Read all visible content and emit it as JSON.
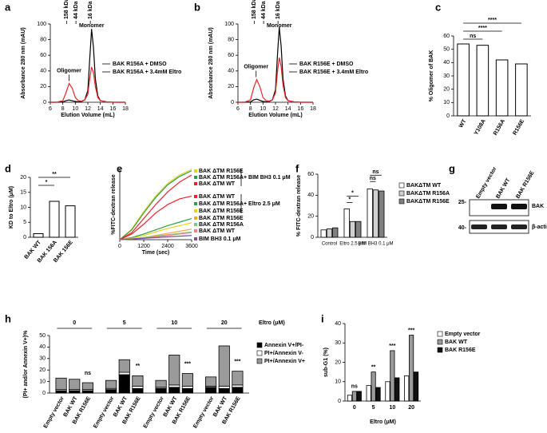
{
  "chart_data": [
    {
      "type": "line",
      "panel": "a",
      "xlabel": "Elution Volume (mL)",
      "ylabel": "Absorbance 280 nm (mAU)",
      "xlim": [
        6,
        18
      ],
      "xticks": [
        6,
        8,
        10,
        12,
        14,
        16,
        18
      ],
      "ylim": [
        0,
        100
      ],
      "yticks": [
        0,
        20,
        40,
        60,
        80,
        100
      ],
      "top_ticks": [
        {
          "value": 8.6,
          "label": "158 kDa"
        },
        {
          "value": 10.1,
          "label": "44 kDa"
        },
        {
          "value": 12.4,
          "label": "16 kDa"
        }
      ],
      "annotations": [
        "Oligomer",
        "Monomer"
      ],
      "x": [
        6,
        7,
        8,
        8.5,
        9,
        9.5,
        10,
        10.5,
        11,
        11.5,
        12,
        12.3,
        12.6,
        12.9,
        13.2,
        13.6,
        14,
        15,
        16,
        17,
        18
      ],
      "series": [
        {
          "name": "BAK R156A + DMSO",
          "color": "#000000",
          "values": [
            0,
            0,
            0.5,
            2,
            3,
            2,
            1,
            0.5,
            1,
            3,
            15,
            55,
            93,
            70,
            30,
            8,
            2,
            0.5,
            0,
            0,
            0
          ]
        },
        {
          "name": "BAK R156A + 3.4mM Eltro",
          "color": "#e8252a",
          "values": [
            0,
            0,
            2,
            12,
            24,
            18,
            6,
            2,
            1.5,
            3,
            10,
            30,
            45,
            38,
            20,
            6,
            2,
            0.5,
            0,
            0,
            0
          ]
        }
      ]
    },
    {
      "type": "line",
      "panel": "b",
      "xlabel": "Elution Volume (mL)",
      "ylabel": "Absorbance 280 nm (mAU)",
      "xlim": [
        6,
        18
      ],
      "xticks": [
        6,
        8,
        10,
        12,
        14,
        16,
        18
      ],
      "ylim": [
        0,
        100
      ],
      "yticks": [
        0,
        20,
        40,
        60,
        80,
        100
      ],
      "top_ticks": [
        {
          "value": 8.6,
          "label": "158 kDa"
        },
        {
          "value": 10.1,
          "label": "44 kDa"
        },
        {
          "value": 12.4,
          "label": "16 kDa"
        }
      ],
      "annotations": [
        "Oligomer",
        "Monomer"
      ],
      "x": [
        6,
        7,
        8,
        8.5,
        9,
        9.5,
        10,
        10.5,
        11,
        11.5,
        12,
        12.3,
        12.6,
        12.9,
        13.2,
        13.6,
        14,
        15,
        16,
        17,
        18
      ],
      "series": [
        {
          "name": "BAK R156E + DMSO",
          "color": "#000000",
          "values": [
            0,
            0,
            0.5,
            3,
            4,
            2.5,
            1,
            0.5,
            1,
            3,
            16,
            58,
            96,
            72,
            30,
            8,
            2,
            0.5,
            0,
            0,
            0
          ]
        },
        {
          "name": "BAK R156E + 3.4mM Eltro",
          "color": "#e8252a",
          "values": [
            0,
            0,
            3,
            18,
            29,
            20,
            6,
            2,
            1.5,
            3,
            12,
            38,
            57,
            46,
            22,
            6,
            2,
            0.5,
            0,
            0,
            0
          ]
        }
      ]
    },
    {
      "type": "bar",
      "panel": "c",
      "ylabel": "% Oligomer of BAK",
      "categories": [
        "WT",
        "Y108A",
        "R156A",
        "R156E"
      ],
      "values": [
        54,
        53,
        42,
        39
      ],
      "color": "#ffffff",
      "ylim": [
        0,
        60
      ],
      "yticks": [
        0,
        10,
        20,
        30,
        40,
        50,
        60
      ],
      "significance": [
        "ns",
        "****",
        "****"
      ]
    },
    {
      "type": "bar",
      "panel": "d",
      "ylabel": "KD to Eltro (μM)",
      "categories": [
        "BAK WT",
        "BAK 156A",
        "BAK 156E"
      ],
      "values": [
        1.2,
        12,
        10.5
      ],
      "color": "#ffffff",
      "ylim": [
        0,
        20
      ],
      "yticks": [
        0,
        5,
        10,
        15,
        20
      ],
      "significance": [
        "*",
        "**"
      ]
    },
    {
      "type": "line",
      "panel": "e",
      "xlabel": "Time (sec)",
      "ylabel": "%FITC-dextran release",
      "xlim": [
        0,
        3600
      ],
      "xticks": [
        0,
        1200,
        2400,
        3600
      ],
      "ylim": [
        0,
        100
      ],
      "group_labels": [
        "+ BIM BH3 0.1 μM",
        "+ Eltro 2.5 μM"
      ],
      "x": [
        0,
        600,
        1200,
        1800,
        2400,
        3000,
        3600
      ],
      "series": [
        {
          "name": "BAK ΔTM R156E",
          "color": "#e8d21c",
          "values": [
            0,
            15,
            40,
            62,
            80,
            92,
            100
          ]
        },
        {
          "name": "BAK ΔTM R156A",
          "color": "#2e9e4a",
          "values": [
            0,
            14,
            38,
            60,
            78,
            90,
            98
          ]
        },
        {
          "name": "BAK ΔTM WT",
          "color": "#e8252a",
          "values": [
            0,
            10,
            30,
            50,
            68,
            82,
            92
          ]
        },
        {
          "name": "BAK ΔTM WT",
          "color": "#e8252a",
          "values": [
            0,
            8,
            22,
            38,
            50,
            58,
            62
          ]
        },
        {
          "name": "BAK ΔTM R156A",
          "color": "#2e9e4a",
          "values": [
            0,
            3,
            8,
            14,
            20,
            25,
            30
          ]
        },
        {
          "name": "BAK ΔTM R156E",
          "color": "#e8d21c",
          "values": [
            0,
            2,
            6,
            11,
            16,
            20,
            24
          ]
        },
        {
          "name": "BAK ΔTM R156E",
          "color": "#f0a830",
          "values": [
            0,
            1,
            3,
            6,
            9,
            12,
            15
          ]
        },
        {
          "name": "BAK ΔTM R156A",
          "color": "#7fc97f",
          "values": [
            0,
            1,
            3,
            5,
            7,
            9,
            11
          ]
        },
        {
          "name": "BAK ΔTM WT",
          "color": "#f08080",
          "values": [
            0,
            1,
            2,
            4,
            6,
            8,
            10
          ]
        },
        {
          "name": "BIM BH3 0.1 μM",
          "color": "#7b4fa0",
          "values": [
            0,
            1,
            2,
            3,
            4,
            5,
            6
          ]
        }
      ]
    },
    {
      "type": "grouped_bar",
      "panel": "f",
      "ylabel": "% FITC-dextran release",
      "categories": [
        "Control",
        "Eltro 2.5 μM",
        "BIM BH3 0.1 μM"
      ],
      "series": [
        {
          "name": "BAKΔTM WT",
          "color": "#ffffff",
          "values": [
            7,
            27,
            46
          ]
        },
        {
          "name": "BAKΔTM R156A",
          "color": "#d0d0d0",
          "values": [
            8,
            15,
            45
          ]
        },
        {
          "name": "BAKΔTM R156E",
          "color": "#808080",
          "values": [
            9,
            15,
            44
          ]
        }
      ],
      "ylim": [
        0,
        60
      ],
      "yticks": [
        0,
        20,
        40,
        60
      ],
      "significance": [
        "*",
        "*",
        "ns",
        "ns"
      ]
    },
    {
      "type": "blot",
      "panel": "g",
      "lanes": [
        "Empty vector",
        "BAK WT",
        "BAK R156E"
      ],
      "markers": [
        "25-",
        "40-"
      ],
      "bands": [
        "BAK",
        "β-actin"
      ]
    },
    {
      "type": "stacked_bar",
      "panel": "h",
      "xlabel": "Eltro (μM)",
      "ylabel": "(PI+ and/or Annexin V+)%",
      "groups": [
        "0",
        "5",
        "10",
        "20"
      ],
      "categories": [
        "Empty vector",
        "BAK WT",
        "BAK R156E",
        "Empty vector",
        "BAK WT",
        "BAK R156E",
        "Empty vector",
        "BAK WT",
        "BAK R156E",
        "Empty vector",
        "BAK WT",
        "BAK R156E"
      ],
      "series": [
        {
          "name": "Annexin V+/PI-",
          "color": "#000000",
          "values": [
            2,
            2,
            2,
            3,
            16,
            4,
            4,
            5,
            4,
            5,
            4,
            5
          ]
        },
        {
          "name": "PI+/Annexin V-",
          "color": "#ffffff",
          "values": [
            1,
            1,
            1,
            1,
            2,
            2,
            1,
            2,
            2,
            1,
            2,
            2
          ]
        },
        {
          "name": "PI+/Annexin V+",
          "color": "#9a9a9a",
          "values": [
            10,
            9,
            6,
            7,
            11,
            9,
            6,
            26,
            11,
            8,
            35,
            12
          ]
        }
      ],
      "ylim": [
        0,
        50
      ],
      "yticks": [
        0,
        10,
        20,
        30,
        40,
        50
      ],
      "significance": [
        "ns",
        "**",
        "***",
        "***"
      ]
    },
    {
      "type": "grouped_bar",
      "panel": "i",
      "xlabel": "Eltro (μM)",
      "ylabel": "sub-G1 (%)",
      "categories": [
        "0",
        "5",
        "10",
        "20"
      ],
      "series": [
        {
          "name": "Empty vector",
          "color": "#ffffff",
          "values": [
            3,
            8,
            10,
            13
          ]
        },
        {
          "name": "BAK WT",
          "color": "#9a9a9a",
          "values": [
            5,
            15,
            26,
            34
          ]
        },
        {
          "name": "BAK R156E",
          "color": "#111111",
          "values": [
            5,
            7,
            12,
            15
          ]
        }
      ],
      "ylim": [
        0,
        40
      ],
      "yticks": [
        0,
        10,
        20,
        30,
        40
      ],
      "significance": [
        "ns",
        "**",
        "***",
        "***"
      ]
    }
  ]
}
